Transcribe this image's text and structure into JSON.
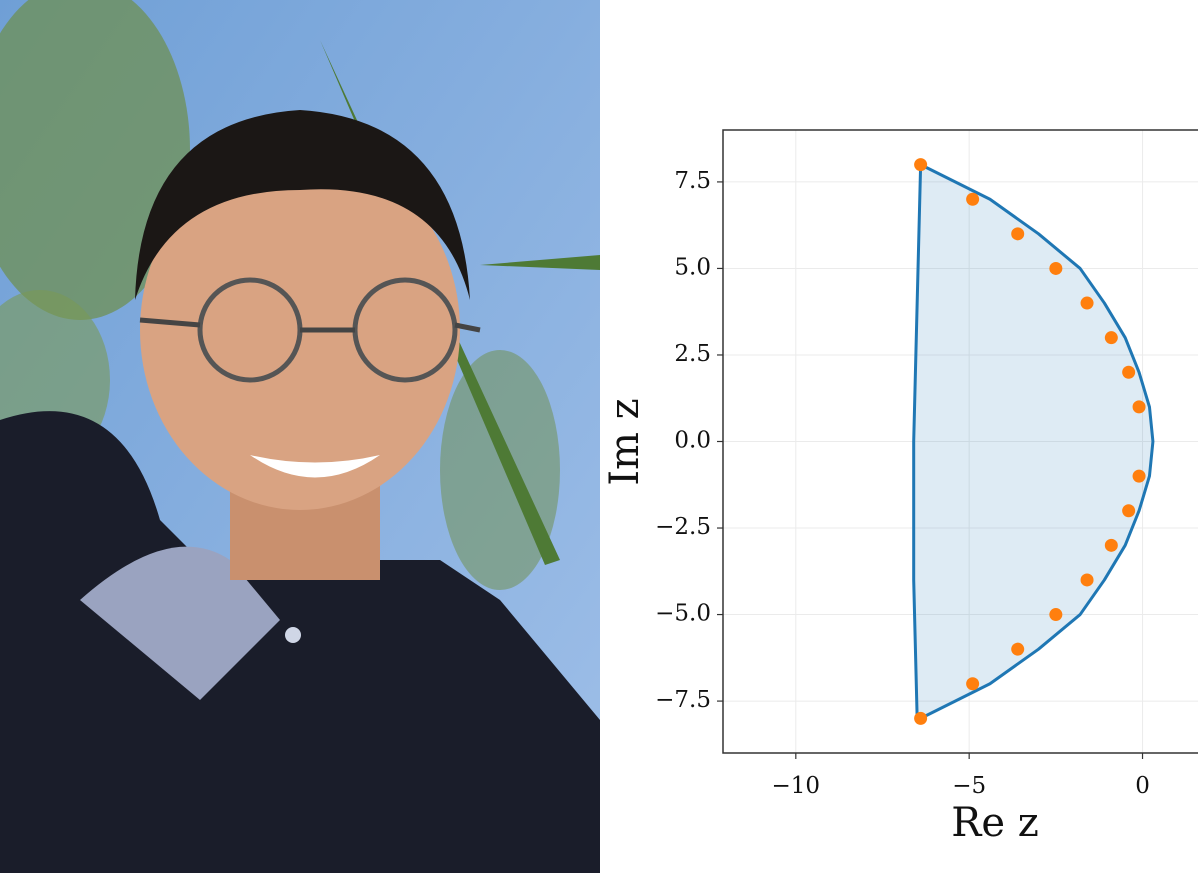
{
  "chart_data": {
    "type": "scatter",
    "xlabel": "Re z",
    "ylabel": "Im z",
    "xlim": [
      -12.1,
      1.6
    ],
    "ylim": [
      -9,
      9
    ],
    "xticks": [
      {
        "value": -10,
        "label": "−10"
      },
      {
        "value": -5,
        "label": "−5"
      },
      0
    ],
    "yticks": [
      {
        "value": 7.5,
        "label": "7.5"
      },
      {
        "value": 5,
        "label": "5.0"
      },
      {
        "value": 2.5,
        "label": "2.5"
      },
      {
        "value": 0,
        "label": "0.0"
      },
      {
        "value": -2.5,
        "label": "−2.5"
      },
      {
        "value": -5,
        "label": "−5.0"
      },
      {
        "value": -7.5,
        "label": "−7.5"
      }
    ],
    "grid": true,
    "series": [
      {
        "type": "area",
        "color": "#1f77b4",
        "x": [
          -6.5,
          -6.6,
          -6.6,
          -6.5,
          -6.4,
          -4.4,
          -3.0,
          -1.8,
          -1.1,
          -0.5,
          -0.1,
          0.2,
          0.3,
          0.2,
          -0.1,
          -0.5,
          -1.1,
          -1.8,
          -3.0,
          -4.4,
          -6.4
        ],
        "values": [
          -8,
          -4,
          0,
          4,
          8,
          7,
          6,
          5,
          4,
          3,
          2,
          1,
          0,
          -1,
          -2,
          -3,
          -4,
          -5,
          -6,
          -7,
          -8
        ]
      },
      {
        "type": "scatter",
        "color": "#ff7f0e",
        "x": [
          -6.4,
          -4.9,
          -3.6,
          -2.5,
          -1.6,
          -0.9,
          -0.4,
          -0.1,
          -0.1,
          -0.4,
          -0.9,
          -1.6,
          -2.5,
          -3.6,
          -4.9,
          -6.4
        ],
        "values": [
          8,
          7,
          6,
          5,
          4,
          3,
          2,
          1,
          -1,
          -2,
          -3,
          -4,
          -5,
          -6,
          -7,
          -8
        ]
      }
    ]
  }
}
